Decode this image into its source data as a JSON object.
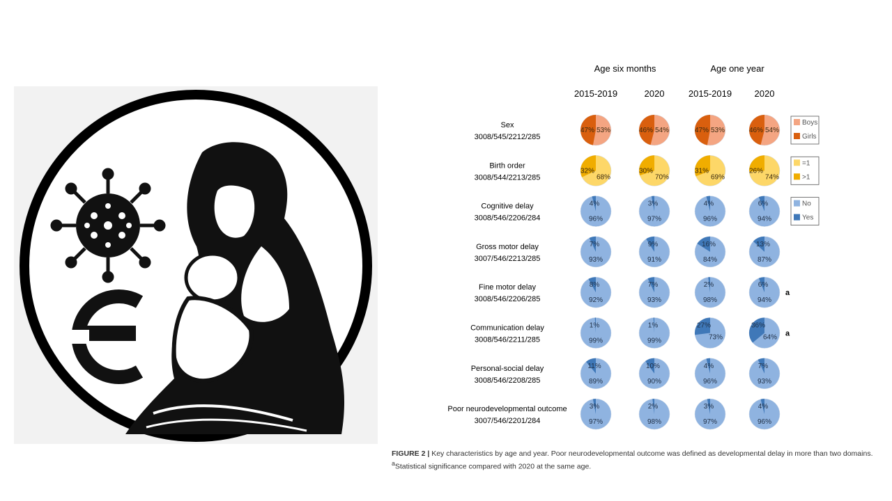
{
  "logo": {
    "description_icons": [
      "virus-icon",
      "mother-breastfeeding-icon",
      "euro-like-symbol-icon"
    ]
  },
  "chart_data": {
    "type": "pie",
    "column_groups": [
      {
        "label": "Age six months",
        "columns": [
          "2015-2019",
          "2020"
        ]
      },
      {
        "label": "Age one year",
        "columns": [
          "2015-2019",
          "2020"
        ]
      }
    ],
    "rows": [
      {
        "name": "Sex",
        "n": "3008/545/2212/285",
        "legend": [
          "Boys",
          "Girls"
        ],
        "colors": [
          "#f4a582",
          "#d95f0e"
        ],
        "pies": [
          [
            53,
            47
          ],
          [
            54,
            46
          ],
          [
            53,
            47
          ],
          [
            54,
            46
          ]
        ],
        "marks": [
          "",
          "",
          "",
          ""
        ]
      },
      {
        "name": "Birth order",
        "n": "3008/544/2213/285",
        "legend": [
          "=1",
          ">1"
        ],
        "colors": [
          "#fdd768",
          "#f0ad00"
        ],
        "pies": [
          [
            68,
            32
          ],
          [
            70,
            30
          ],
          [
            69,
            31
          ],
          [
            74,
            26
          ]
        ],
        "marks": [
          "",
          "",
          "",
          ""
        ]
      },
      {
        "name": "Cognitive delay",
        "n": "3008/546/2206/284",
        "legend": [
          "No",
          "Yes"
        ],
        "colors": [
          "#8fb3e0",
          "#3f78b8"
        ],
        "pies": [
          [
            96,
            4
          ],
          [
            97,
            3
          ],
          [
            96,
            4
          ],
          [
            94,
            6
          ]
        ],
        "marks": [
          "",
          "",
          "",
          ""
        ]
      },
      {
        "name": "Gross motor delay",
        "n": "3007/546/2213/285",
        "legend": [],
        "colors": [
          "#8fb3e0",
          "#3f78b8"
        ],
        "pies": [
          [
            93,
            7
          ],
          [
            91,
            9
          ],
          [
            84,
            16
          ],
          [
            87,
            13
          ]
        ],
        "marks": [
          "",
          "",
          "",
          ""
        ]
      },
      {
        "name": "Fine motor delay",
        "n": "3008/546/2206/285",
        "legend": [],
        "colors": [
          "#8fb3e0",
          "#3f78b8"
        ],
        "pies": [
          [
            92,
            8
          ],
          [
            93,
            7
          ],
          [
            98,
            2
          ],
          [
            94,
            6
          ]
        ],
        "marks": [
          "",
          "",
          "",
          "a"
        ]
      },
      {
        "name": "Communication delay",
        "n": "3008/546/2211/285",
        "legend": [],
        "colors": [
          "#8fb3e0",
          "#3f78b8"
        ],
        "pies": [
          [
            99,
            1
          ],
          [
            99,
            1
          ],
          [
            73,
            27
          ],
          [
            64,
            36
          ]
        ],
        "marks": [
          "",
          "",
          "",
          "a"
        ]
      },
      {
        "name": "Personal-social delay",
        "n": "3008/546/2208/285",
        "legend": [],
        "colors": [
          "#8fb3e0",
          "#3f78b8"
        ],
        "pies": [
          [
            89,
            11
          ],
          [
            90,
            10
          ],
          [
            96,
            4
          ],
          [
            93,
            7
          ]
        ],
        "marks": [
          "",
          "",
          "",
          ""
        ]
      },
      {
        "name": "Poor neurodevelopmental outcome",
        "n": "3007/546/2201/284",
        "legend": [],
        "colors": [
          "#8fb3e0",
          "#3f78b8"
        ],
        "pies": [
          [
            97,
            3
          ],
          [
            98,
            2
          ],
          [
            97,
            3
          ],
          [
            96,
            4
          ]
        ],
        "marks": [
          "",
          "",
          "",
          ""
        ]
      }
    ]
  },
  "caption": {
    "label": "FIGURE 2 |",
    "text": " Key characteristics by age and year. Poor neurodevelopmental outcome was defined as developmental delay in more than two domains. ",
    "sup": "a",
    "text2": "Statistical significance compared with 2020 at the same age."
  }
}
